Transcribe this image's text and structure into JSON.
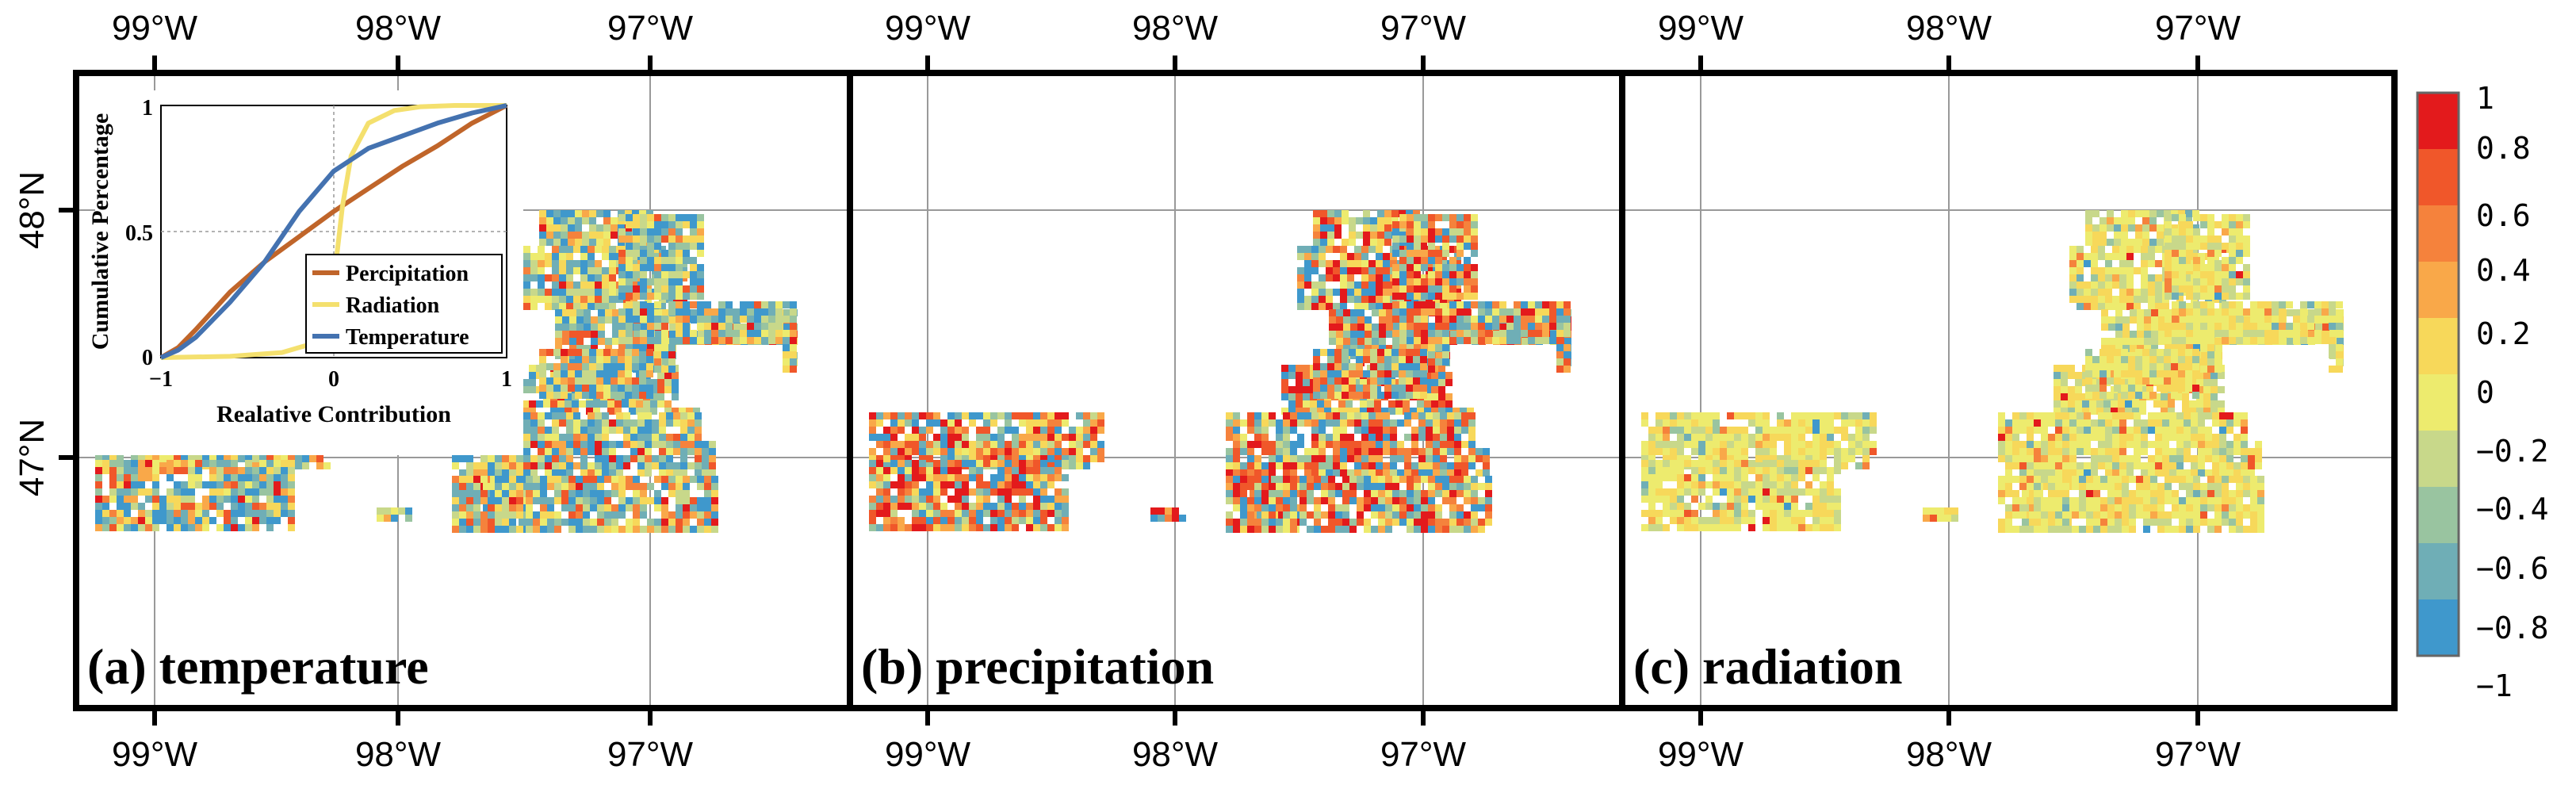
{
  "map": {
    "lon_labels": [
      "99°W",
      "98°W",
      "97°W"
    ],
    "lat_labels": [
      "48°N",
      "47°N"
    ],
    "panels": [
      {
        "label": "(a) temperature",
        "variable": "temperature"
      },
      {
        "label": "(b) precipitation",
        "variable": "precipitation"
      },
      {
        "label": "(c) radiation",
        "variable": "radiation"
      }
    ]
  },
  "colorbar": {
    "ticks": [
      "1",
      "0.8",
      "0.6",
      "0.4",
      "0.2",
      "0",
      "−0.2",
      "−0.4",
      "−0.6",
      "−0.8",
      "−1"
    ],
    "colors": [
      "#e31a1c",
      "#f0572a",
      "#f5823c",
      "#f9a849",
      "#f7d85a",
      "#edeb6e",
      "#c8d88a",
      "#99c4a0",
      "#6faeb6",
      "#3f98cc"
    ]
  },
  "chart_data": {
    "type": "line",
    "title": "",
    "xlabel": "Realative Contribution",
    "ylabel": "Cumulative Percentage",
    "xlim": [
      -1,
      1
    ],
    "ylim": [
      0,
      1
    ],
    "xticks": [
      "−1",
      "0",
      "1"
    ],
    "yticks": [
      "0",
      "0.5",
      "1"
    ],
    "legend_position": "bottom-right",
    "series": [
      {
        "name": "Percipitation",
        "color": "#c0652a",
        "x": [
          -1,
          -0.9,
          -0.8,
          -0.6,
          -0.4,
          -0.2,
          0,
          0.2,
          0.4,
          0.6,
          0.8,
          1
        ],
        "y": [
          0,
          0.04,
          0.11,
          0.26,
          0.38,
          0.48,
          0.58,
          0.67,
          0.76,
          0.84,
          0.93,
          1
        ]
      },
      {
        "name": "Radiation",
        "color": "#f4e06e",
        "x": [
          -1,
          -0.6,
          -0.3,
          -0.15,
          -0.05,
          0,
          0.05,
          0.1,
          0.2,
          0.35,
          0.5,
          0.7,
          1
        ],
        "y": [
          0,
          0.005,
          0.02,
          0.05,
          0.12,
          0.3,
          0.6,
          0.8,
          0.93,
          0.98,
          0.995,
          1,
          1
        ]
      },
      {
        "name": "Temperature",
        "color": "#4472b0",
        "x": [
          -1,
          -0.9,
          -0.8,
          -0.6,
          -0.4,
          -0.2,
          0,
          0.2,
          0.4,
          0.6,
          0.8,
          1
        ],
        "y": [
          0,
          0.03,
          0.08,
          0.22,
          0.38,
          0.58,
          0.74,
          0.83,
          0.88,
          0.93,
          0.97,
          1
        ]
      }
    ]
  }
}
